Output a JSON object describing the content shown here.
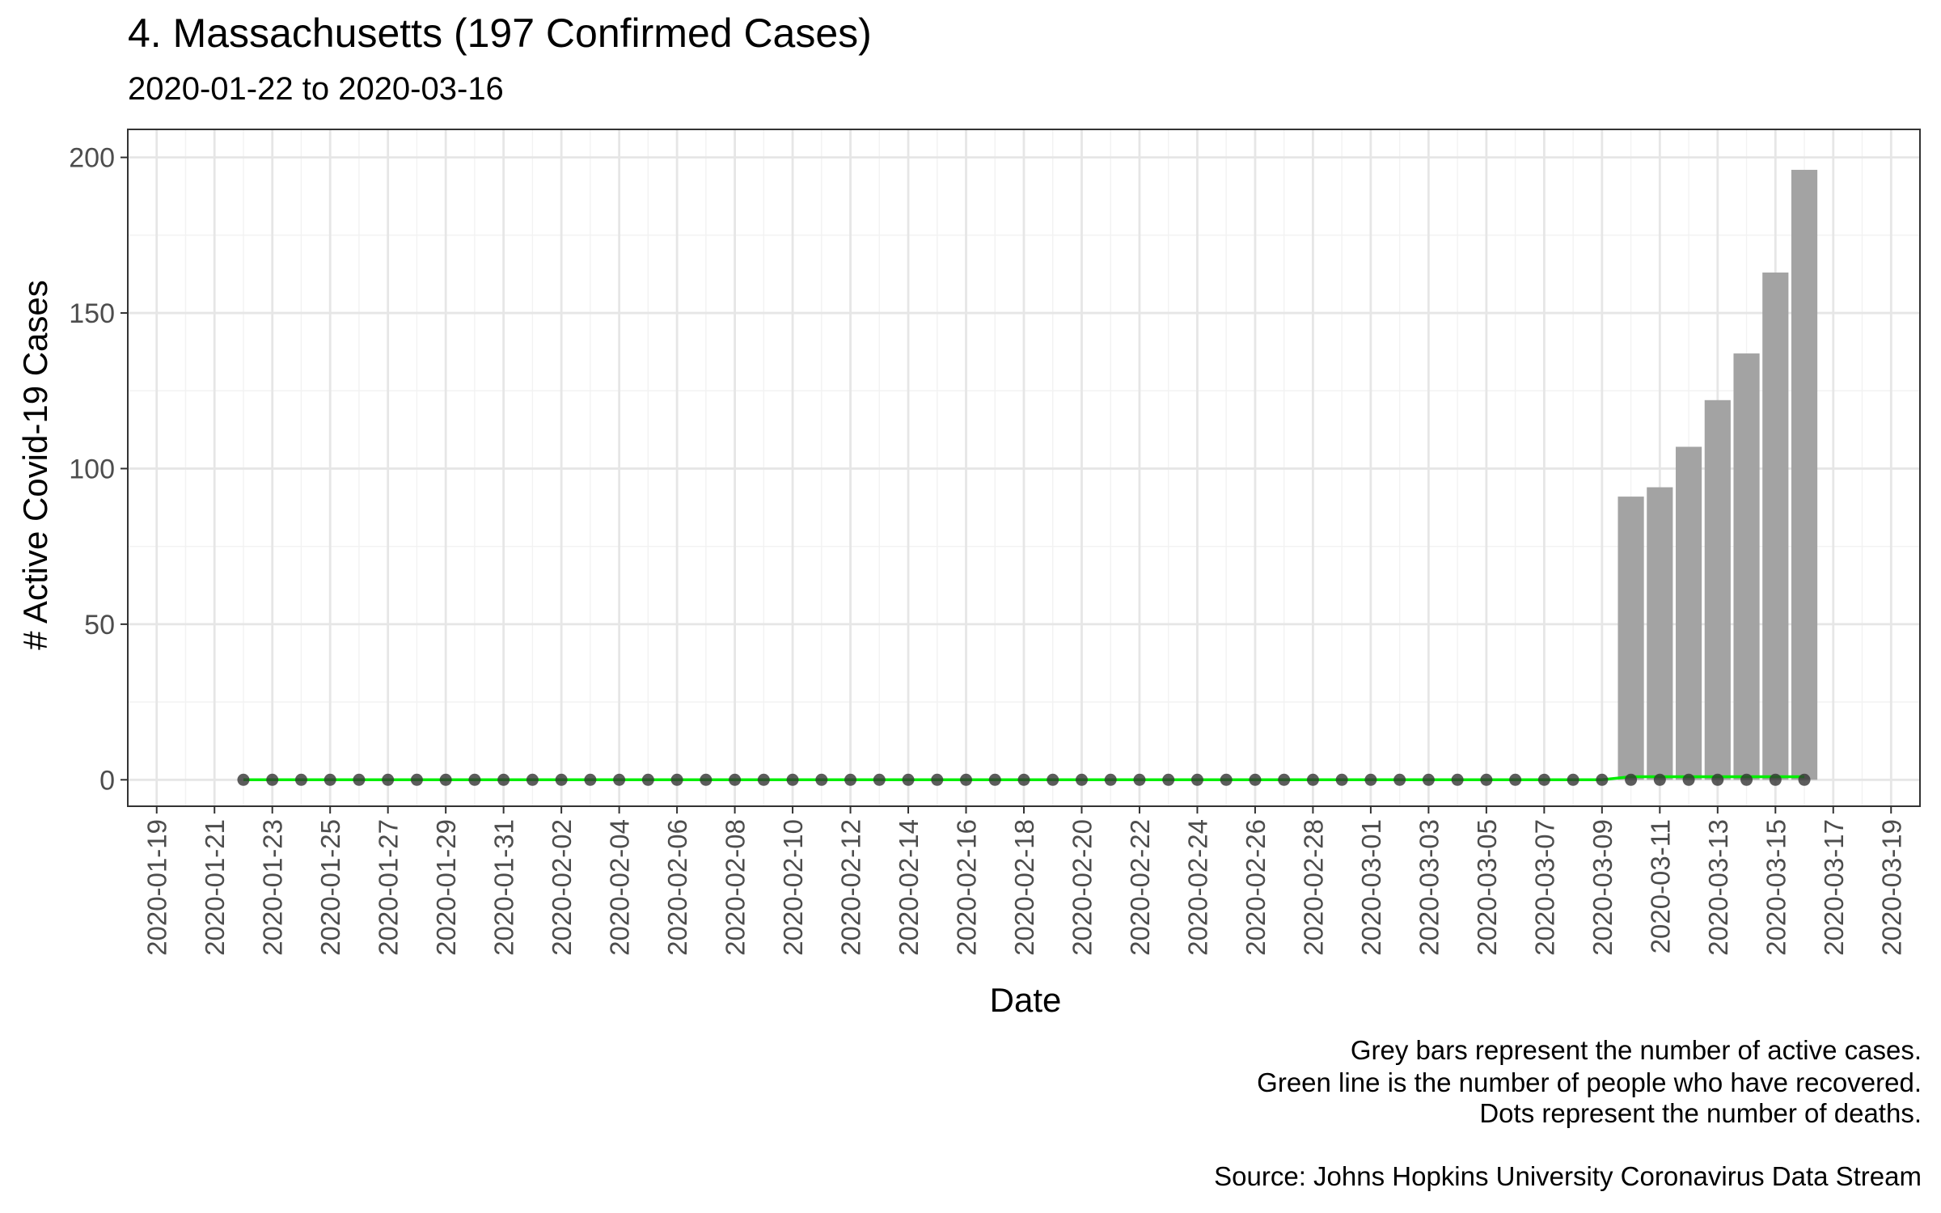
{
  "chart_data": {
    "type": "bar",
    "title": "4. Massachusetts (197 Confirmed Cases)",
    "subtitle": "2020-01-22 to 2020-03-16",
    "xlabel": "Date",
    "ylabel": "# Active Covid-19 Cases",
    "ylim": [
      -8.5,
      209
    ],
    "yticks": [
      0,
      50,
      100,
      150,
      200
    ],
    "xlim": [
      "2020-01-19",
      "2020-03-19"
    ],
    "xticks": [
      "2020-01-19",
      "2020-01-21",
      "2020-01-23",
      "2020-01-25",
      "2020-01-27",
      "2020-01-29",
      "2020-01-31",
      "2020-02-02",
      "2020-02-04",
      "2020-02-06",
      "2020-02-08",
      "2020-02-10",
      "2020-02-12",
      "2020-02-14",
      "2020-02-16",
      "2020-02-18",
      "2020-02-20",
      "2020-02-22",
      "2020-02-24",
      "2020-02-26",
      "2020-02-28",
      "2020-03-01",
      "2020-03-03",
      "2020-03-05",
      "2020-03-07",
      "2020-03-09",
      "2020-03-11",
      "2020-03-13",
      "2020-03-15",
      "2020-03-17",
      "2020-03-19"
    ],
    "grid": true,
    "dates": [
      "2020-01-22",
      "2020-01-23",
      "2020-01-24",
      "2020-01-25",
      "2020-01-26",
      "2020-01-27",
      "2020-01-28",
      "2020-01-29",
      "2020-01-30",
      "2020-01-31",
      "2020-02-01",
      "2020-02-02",
      "2020-02-03",
      "2020-02-04",
      "2020-02-05",
      "2020-02-06",
      "2020-02-07",
      "2020-02-08",
      "2020-02-09",
      "2020-02-10",
      "2020-02-11",
      "2020-02-12",
      "2020-02-13",
      "2020-02-14",
      "2020-02-15",
      "2020-02-16",
      "2020-02-17",
      "2020-02-18",
      "2020-02-19",
      "2020-02-20",
      "2020-02-21",
      "2020-02-22",
      "2020-02-23",
      "2020-02-24",
      "2020-02-25",
      "2020-02-26",
      "2020-02-27",
      "2020-02-28",
      "2020-02-29",
      "2020-03-01",
      "2020-03-02",
      "2020-03-03",
      "2020-03-04",
      "2020-03-05",
      "2020-03-06",
      "2020-03-07",
      "2020-03-08",
      "2020-03-09",
      "2020-03-10",
      "2020-03-11",
      "2020-03-12",
      "2020-03-13",
      "2020-03-14",
      "2020-03-15",
      "2020-03-16"
    ],
    "series": [
      {
        "values": [
          0,
          0,
          0,
          0,
          0,
          0,
          0,
          0,
          0,
          0,
          0,
          0,
          0,
          0,
          0,
          0,
          0,
          0,
          0,
          0,
          0,
          0,
          0,
          0,
          0,
          0,
          0,
          0,
          0,
          0,
          0,
          0,
          0,
          0,
          0,
          0,
          0,
          0,
          0,
          0,
          0,
          0,
          0,
          0,
          0,
          0,
          0,
          0,
          91,
          94,
          107,
          122,
          137,
          163,
          196
        ],
        "color": "#a3a3a3",
        "kind": "bar"
      },
      {
        "values": [
          0,
          0,
          0,
          0,
          0,
          0,
          0,
          0,
          0,
          0,
          0,
          0,
          0,
          0,
          0,
          0,
          0,
          0,
          0,
          0,
          0,
          0,
          0,
          0,
          0,
          0,
          0,
          0,
          0,
          0,
          0,
          0,
          0,
          0,
          0,
          0,
          0,
          0,
          0,
          0,
          0,
          0,
          0,
          0,
          0,
          0,
          0,
          0,
          1,
          1,
          1,
          1,
          1,
          1,
          1
        ],
        "color": "#00ee00",
        "kind": "line"
      },
      {
        "values": [
          0,
          0,
          0,
          0,
          0,
          0,
          0,
          0,
          0,
          0,
          0,
          0,
          0,
          0,
          0,
          0,
          0,
          0,
          0,
          0,
          0,
          0,
          0,
          0,
          0,
          0,
          0,
          0,
          0,
          0,
          0,
          0,
          0,
          0,
          0,
          0,
          0,
          0,
          0,
          0,
          0,
          0,
          0,
          0,
          0,
          0,
          0,
          0,
          0,
          0,
          0,
          0,
          0,
          0,
          0
        ],
        "color": "#333333",
        "kind": "points"
      }
    ]
  },
  "captions": {
    "line1": "Grey bars represent the number of active cases.",
    "line2": "Green line is the number of people who have recovered.",
    "line3": "Dots represent the number of deaths.",
    "source": "Source: Johns Hopkins University Coronavirus Data Stream"
  }
}
